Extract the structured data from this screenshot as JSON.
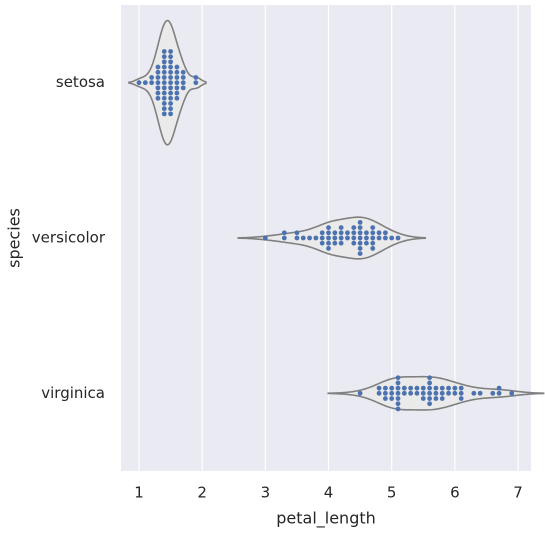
{
  "chart_data": {
    "type": "violin",
    "x_label": "petal_length",
    "y_label": "species",
    "categories": [
      "setosa",
      "versicolor",
      "virginica"
    ],
    "values": [
      [
        1.4,
        1.4,
        1.3,
        1.5,
        1.4,
        1.7,
        1.4,
        1.5,
        1.4,
        1.5,
        1.5,
        1.6,
        1.4,
        1.1,
        1.2,
        1.5,
        1.3,
        1.4,
        1.7,
        1.5,
        1.7,
        1.5,
        1.0,
        1.7,
        1.9,
        1.6,
        1.6,
        1.5,
        1.4,
        1.6,
        1.6,
        1.5,
        1.5,
        1.4,
        1.5,
        1.2,
        1.3,
        1.4,
        1.3,
        1.5,
        1.3,
        1.3,
        1.3,
        1.6,
        1.9,
        1.4,
        1.6,
        1.4,
        1.5,
        1.4
      ],
      [
        4.7,
        4.5,
        4.9,
        4.0,
        4.6,
        4.5,
        4.7,
        3.3,
        4.6,
        3.9,
        3.5,
        4.2,
        4.0,
        4.7,
        3.6,
        4.4,
        4.5,
        4.1,
        4.5,
        3.9,
        4.8,
        4.0,
        4.9,
        4.7,
        4.3,
        4.4,
        4.8,
        5.0,
        4.5,
        3.5,
        3.8,
        3.7,
        3.9,
        5.1,
        4.5,
        4.5,
        4.7,
        4.4,
        4.1,
        4.0,
        4.4,
        4.6,
        4.0,
        3.3,
        4.2,
        4.2,
        4.2,
        4.3,
        3.0,
        4.1
      ],
      [
        6.0,
        5.1,
        5.9,
        5.6,
        5.8,
        6.6,
        4.5,
        6.3,
        5.8,
        6.1,
        5.1,
        5.3,
        5.5,
        5.0,
        5.1,
        5.3,
        5.5,
        6.7,
        6.9,
        5.0,
        5.7,
        4.9,
        6.7,
        4.9,
        5.7,
        6.0,
        4.8,
        4.9,
        5.6,
        5.8,
        6.1,
        6.4,
        5.6,
        5.1,
        5.6,
        6.1,
        5.6,
        5.5,
        4.8,
        5.4,
        5.6,
        5.1,
        5.1,
        5.9,
        5.7,
        5.2,
        5.0,
        5.2,
        5.4,
        5.1
      ]
    ],
    "color": "#4c72b0",
    "violin_color": "#eaeaea",
    "xlim": [
      0.715,
      7.205
    ],
    "xticks": [
      1,
      2,
      3,
      4,
      5,
      6,
      7
    ],
    "grid": true
  }
}
